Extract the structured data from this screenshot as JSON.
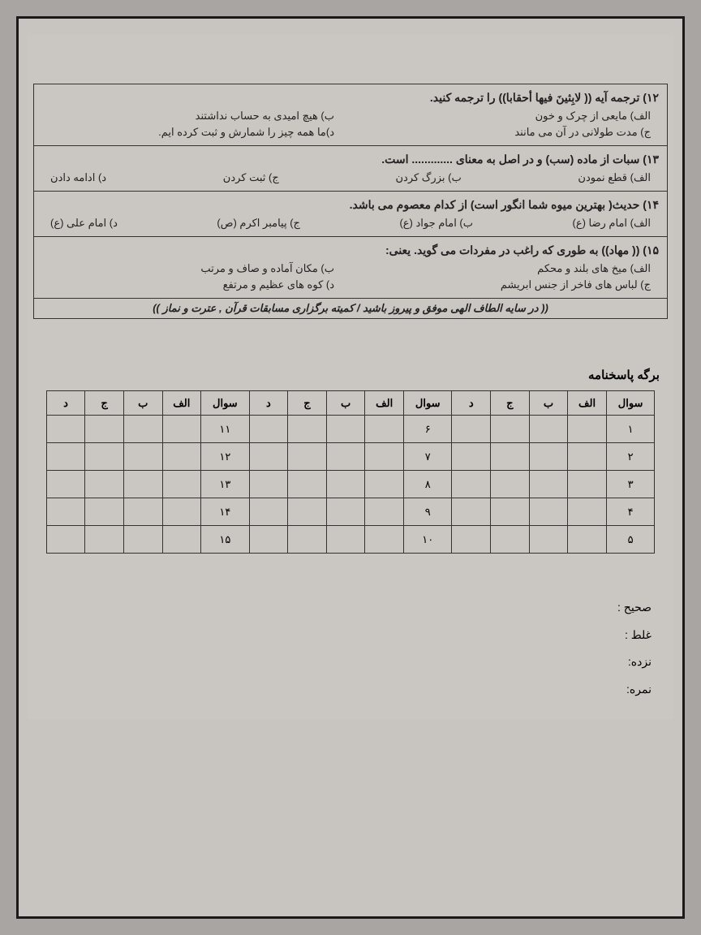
{
  "questions": [
    {
      "num": "۱۲",
      "title": "ترجمه آیه (( لابِثینَ فیها أحقابا)) را ترجمه کنید.",
      "layout": "two-col",
      "opts": {
        "a": "الف) مایعی از چرک و خون",
        "b": "ب) هیچ امیدی به حساب نداشتند",
        "c": "ج) مدت طولانی در آن می مانند",
        "d": "د)ما همه چیز را شمارش و ثبت کرده ایم."
      }
    },
    {
      "num": "۱۳",
      "title": "سبات از ماده (سب) و در اصل به معنای ............. است.",
      "layout": "four",
      "opts": {
        "a": "الف) قطع نمودن",
        "b": "ب) بزرگ کردن",
        "c": "ج) ثبت کردن",
        "d": "د) ادامه دادن"
      }
    },
    {
      "num": "۱۴",
      "title": "حدیث( بهترین میوه شما انگور است) از کدام معصوم می باشد.",
      "layout": "four",
      "opts": {
        "a": "الف) امام رضا (ع)",
        "b": "ب) امام جواد (ع)",
        "c": "ج) پیامبر اکرم (ص)",
        "d": "د) امام علی (ع)"
      }
    },
    {
      "num": "۱۵",
      "title": "(( مهاد)) به طوری که راغب در مفردات می گوید. یعنی:",
      "layout": "two-col",
      "opts": {
        "a": "الف) میخ های بلند و محکم",
        "b": "ب) مکان آماده و صاف و مرتب",
        "c": "ج) لباس های فاخر از جنس ابریشم",
        "d": "د) کوه های عظیم و مرتفع"
      }
    }
  ],
  "footer": "(( در سایه الطاف الهی موفق و پیروز باشید / کمیته برگزاری مسابقات قرآن , عترت و نماز ))",
  "answer_sheet_title": "برگه پاسخنامه",
  "table_headers": [
    "سوال",
    "الف",
    "ب",
    "ج",
    "د"
  ],
  "rows_set1": [
    "۱",
    "۲",
    "۳",
    "۴",
    "۵"
  ],
  "rows_set2": [
    "۶",
    "۷",
    "۸",
    "۹",
    "۱۰"
  ],
  "rows_set3": [
    "۱۱",
    "۱۲",
    "۱۳",
    "۱۴",
    "۱۵"
  ],
  "score": {
    "correct": "صحیح :",
    "wrong": "غلط :",
    "blank": "نزده:",
    "mark": "نمره:"
  }
}
